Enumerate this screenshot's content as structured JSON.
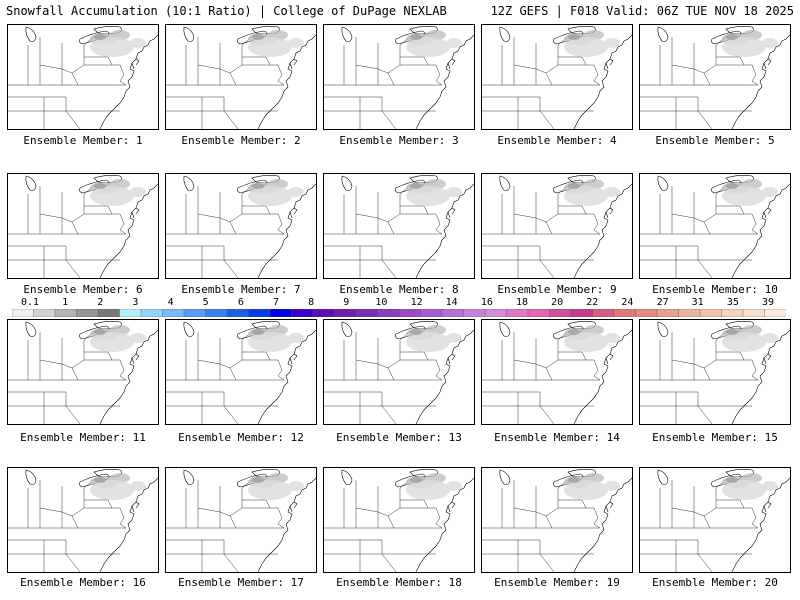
{
  "header": {
    "title_left": "Snowfall Accumulation (10:1 Ratio) | College of DuPage NEXLAB",
    "title_right": "12Z GEFS | F018 Valid: 06Z TUE NOV 18 2025"
  },
  "members": [
    "Ensemble Member: 1",
    "Ensemble Member: 2",
    "Ensemble Member: 3",
    "Ensemble Member: 4",
    "Ensemble Member: 5",
    "Ensemble Member: 6",
    "Ensemble Member: 7",
    "Ensemble Member: 8",
    "Ensemble Member: 9",
    "Ensemble Member: 10",
    "Ensemble Member: 11",
    "Ensemble Member: 12",
    "Ensemble Member: 13",
    "Ensemble Member: 14",
    "Ensemble Member: 15",
    "Ensemble Member: 16",
    "Ensemble Member: 17",
    "Ensemble Member: 18",
    "Ensemble Member: 19",
    "Ensemble Member: 20"
  ],
  "colorbar": {
    "labels": [
      "0.1",
      "1",
      "2",
      "3",
      "4",
      "5",
      "6",
      "7",
      "8",
      "9",
      "10",
      "12",
      "14",
      "16",
      "18",
      "20",
      "22",
      "24",
      "27",
      "31",
      "35",
      "39"
    ],
    "colors": [
      "#f0f0f0",
      "#d2d2d2",
      "#b4b4b4",
      "#969696",
      "#787878",
      "#b4f0fa",
      "#96d2fa",
      "#78b9fa",
      "#5a9cf5",
      "#3c7ff0",
      "#1e5ee6",
      "#0a3ce6",
      "#0000e6",
      "#3c00c8",
      "#5a0fb4",
      "#6e1eaa",
      "#7d2db4",
      "#8c3cbe",
      "#9b4bc8",
      "#aa5ad2",
      "#b96ed7",
      "#c882dc",
      "#d28cd7",
      "#dc78c8",
      "#e664b4",
      "#d2509b",
      "#c83c8c",
      "#d75a87",
      "#e1787d",
      "#e18c7d",
      "#e6a08c",
      "#ebb49b",
      "#f0c3aa",
      "#f5d2b9",
      "#f9e0cc",
      "#fcecdc"
    ]
  }
}
